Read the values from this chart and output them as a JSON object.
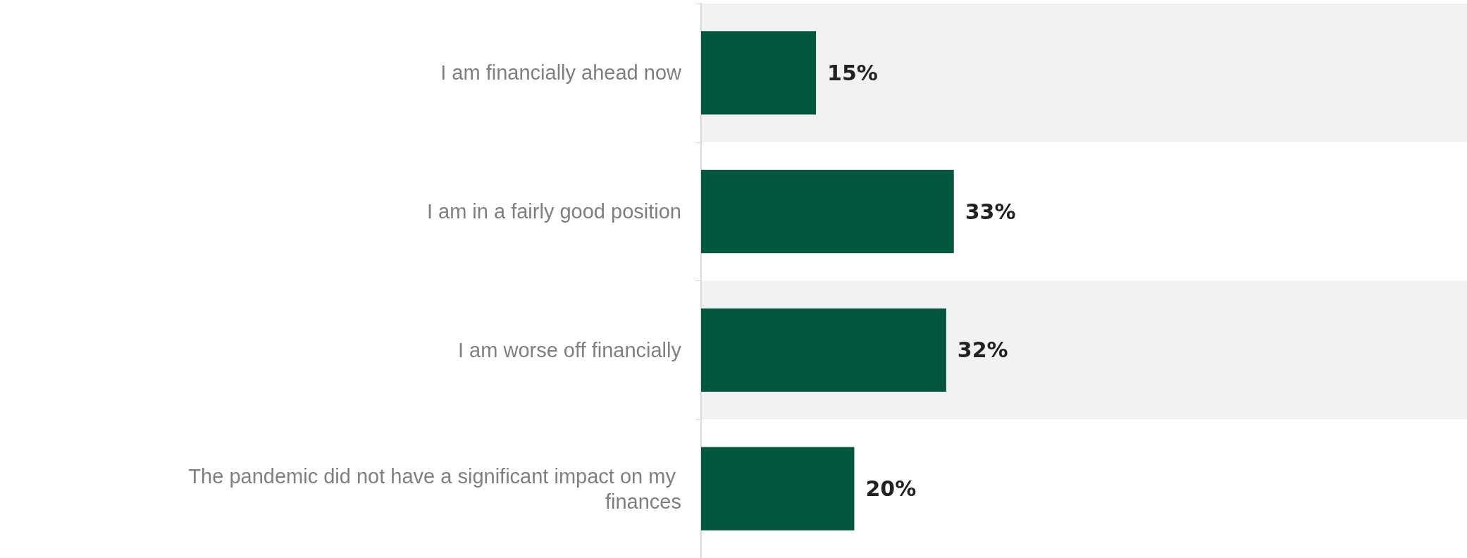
{
  "chart_data": {
    "type": "bar",
    "orientation": "horizontal",
    "categories": [
      "I am financially ahead now",
      "I am in a fairly good position",
      "I am worse off financially",
      "The pandemic did not have a significant impact on my finances"
    ],
    "values": [
      15,
      33,
      32,
      20
    ],
    "color": "#02573f",
    "value_labels": [
      "15%",
      "33%",
      "32%",
      "20%"
    ],
    "tick_labels": "y"
  }
}
